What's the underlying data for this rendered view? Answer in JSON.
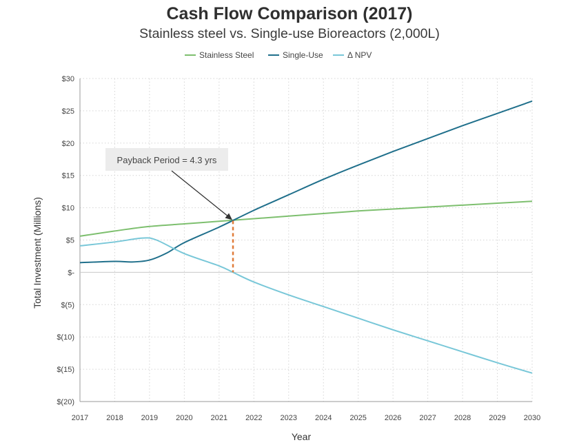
{
  "chart_data": {
    "type": "line",
    "title": "Cash Flow Comparison (2017)",
    "subtitle": "Stainless steel vs. Single-use Bioreactors (2,000L)",
    "xlabel": "Year",
    "ylabel": "Total Investment (Millions)",
    "xlim": [
      2017,
      2030
    ],
    "ylim": [
      -20,
      30
    ],
    "x_ticks": [
      "2017",
      "2018",
      "2019",
      "2020",
      "2021",
      "2022",
      "2023",
      "2024",
      "2025",
      "2026",
      "2027",
      "2028",
      "2029",
      "2030"
    ],
    "y_ticks": [
      {
        "value": 30,
        "label": "$30"
      },
      {
        "value": 25,
        "label": "$25"
      },
      {
        "value": 20,
        "label": "$20"
      },
      {
        "value": 15,
        "label": "$15"
      },
      {
        "value": 10,
        "label": "$10"
      },
      {
        "value": 5,
        "label": "$5"
      },
      {
        "value": 0,
        "label": "$-"
      },
      {
        "value": -5,
        "label": "$(5)"
      },
      {
        "value": -10,
        "label": "$(10)"
      },
      {
        "value": -15,
        "label": "$(15)"
      },
      {
        "value": -20,
        "label": "$(20)"
      }
    ],
    "grid": true,
    "legend_position": "top-center",
    "series": [
      {
        "name": "Stainless Steel",
        "color": "#7dbf6e",
        "x": [
          2017,
          2018,
          2019,
          2020,
          2021,
          2022,
          2023,
          2024,
          2025,
          2026,
          2027,
          2028,
          2029,
          2030
        ],
        "y": [
          5.6,
          6.4,
          7.1,
          7.5,
          7.9,
          8.3,
          8.7,
          9.1,
          9.5,
          9.8,
          10.1,
          10.4,
          10.7,
          11.0
        ]
      },
      {
        "name": "Single-Use",
        "color": "#1f6f8b",
        "x": [
          2017,
          2018,
          2018.5,
          2019,
          2019.5,
          2020,
          2021,
          2022,
          2023,
          2024,
          2025,
          2026,
          2027,
          2028,
          2029,
          2030
        ],
        "y": [
          1.5,
          1.7,
          1.6,
          1.9,
          3.0,
          4.6,
          7.0,
          9.6,
          12.0,
          14.4,
          16.6,
          18.7,
          20.7,
          22.7,
          24.6,
          26.5
        ]
      },
      {
        "name": "Δ NPV",
        "color": "#78c7d8",
        "x": [
          2017,
          2018,
          2018.8,
          2019.2,
          2020,
          2021,
          2021.4,
          2022,
          2023,
          2024,
          2025,
          2026,
          2027,
          2028,
          2029,
          2030
        ],
        "y": [
          4.1,
          4.7,
          5.3,
          5.0,
          2.9,
          1.0,
          0.0,
          -1.5,
          -3.5,
          -5.3,
          -7.1,
          -8.9,
          -10.6,
          -12.3,
          -14.0,
          -15.6
        ]
      }
    ],
    "annotations": [
      {
        "text": "Payback Period = 4.3 yrs",
        "x": 2021.4,
        "y": 8.0
      }
    ],
    "payback_marker": {
      "x": 2021.4,
      "y_from": 0,
      "y_to": 8.0,
      "color": "#e07b39"
    }
  }
}
